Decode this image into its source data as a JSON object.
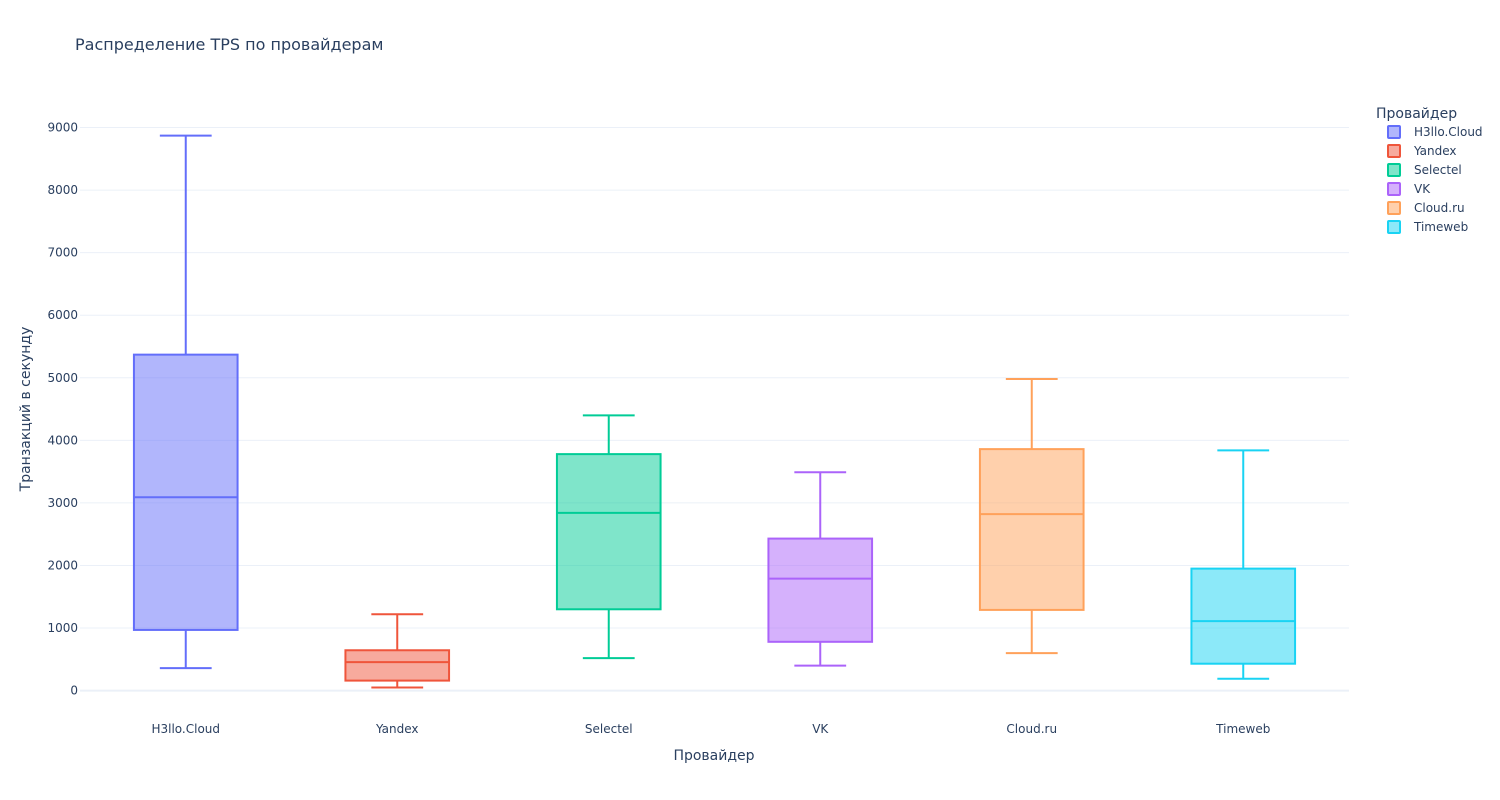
{
  "chart_data": {
    "type": "box",
    "title": "Распределение TPS по провайдерам",
    "xlabel": "Провайдер",
    "ylabel": "Транзакций в секунду",
    "legend_title": "Провайдер",
    "legend_position": "top-right",
    "ylim": [
      -150,
      9600
    ],
    "yticks": [
      0,
      1000,
      2000,
      3000,
      4000,
      5000,
      6000,
      7000,
      8000,
      9000
    ],
    "grid": true,
    "categories": [
      "H3llo.Cloud",
      "Yandex",
      "Selectel",
      "VK",
      "Cloud.ru",
      "Timeweb"
    ],
    "series": [
      {
        "name": "H3llo.Cloud",
        "color": "#636efa",
        "min": 360,
        "q1": 970,
        "median": 3090,
        "q3": 5370,
        "max": 8870
      },
      {
        "name": "Yandex",
        "color": "#ef553b",
        "min": 50,
        "q1": 160,
        "median": 455,
        "q3": 645,
        "max": 1220
      },
      {
        "name": "Selectel",
        "color": "#00cc96",
        "min": 520,
        "q1": 1300,
        "median": 2840,
        "q3": 3780,
        "max": 4400
      },
      {
        "name": "VK",
        "color": "#ab63fa",
        "min": 400,
        "q1": 780,
        "median": 1790,
        "q3": 2430,
        "max": 3490
      },
      {
        "name": "Cloud.ru",
        "color": "#ffa15a",
        "min": 600,
        "q1": 1290,
        "median": 2820,
        "q3": 3860,
        "max": 4980
      },
      {
        "name": "Timeweb",
        "color": "#19d3f3",
        "min": 190,
        "q1": 430,
        "median": 1110,
        "q3": 1950,
        "max": 3840
      }
    ]
  }
}
